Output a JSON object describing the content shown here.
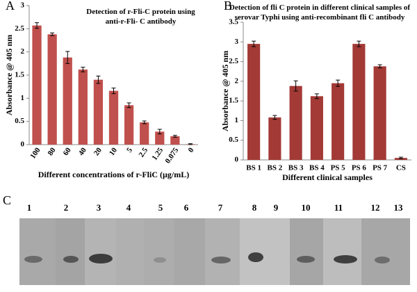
{
  "chart_data": [
    {
      "type": "bar",
      "panel": "A",
      "title": "Detection of r-Fli-C protein using anti-r-Fli- C antibody",
      "x_label": "Different concentrations of r-FliC (µg/mL)",
      "y_label": "Absorbance @ 405 nm",
      "categories": [
        "100",
        "80",
        "60",
        "40",
        "20",
        "10",
        "5",
        "2.5",
        "1.25",
        "0.075",
        "0"
      ],
      "values": [
        2.57,
        2.38,
        1.88,
        1.62,
        1.4,
        1.16,
        0.85,
        0.48,
        0.28,
        0.18,
        0.01
      ],
      "errors": [
        0.06,
        0.03,
        0.13,
        0.05,
        0.08,
        0.06,
        0.05,
        0.03,
        0.05,
        0.02,
        0.01
      ],
      "color": "#c0504d",
      "ylim": [
        0,
        3
      ],
      "yticks": [
        0,
        0.5,
        1,
        1.5,
        2,
        2.5,
        3
      ]
    },
    {
      "type": "bar",
      "panel": "B",
      "title": "Detection of fli C protein in different clinical samples of serovar Typhi using anti-recombinant fli C antibody",
      "x_label": "Different clinical samples",
      "y_label": "Absorbance @ 405 nm",
      "categories": [
        "BS 1",
        "BS 2",
        "BS 3",
        "BS 4",
        "PS 5",
        "PS 6",
        "PS 7",
        "CS"
      ],
      "values": [
        2.95,
        1.08,
        1.88,
        1.62,
        1.95,
        2.95,
        2.38,
        0.05
      ],
      "errors": [
        0.07,
        0.05,
        0.13,
        0.06,
        0.08,
        0.07,
        0.04,
        0.02
      ],
      "color": "#a33a36",
      "ylim": [
        0,
        3.5
      ],
      "yticks": [
        0,
        0.5,
        1,
        1.5,
        2,
        2.5,
        3,
        3.5
      ]
    }
  ],
  "blot": {
    "panel": "C",
    "lanes": [
      "1",
      "2",
      "3",
      "4",
      "5",
      "6",
      "7",
      "8",
      "9",
      "10",
      "11",
      "12",
      "13"
    ]
  }
}
